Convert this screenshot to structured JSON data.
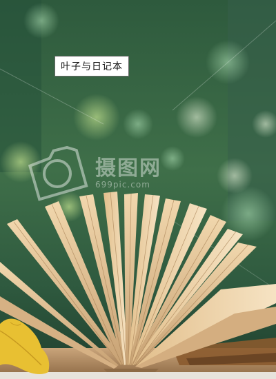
{
  "caption": "叶子与日记本",
  "watermark": {
    "logo_text": "摄图网",
    "url": "699pic.com"
  }
}
